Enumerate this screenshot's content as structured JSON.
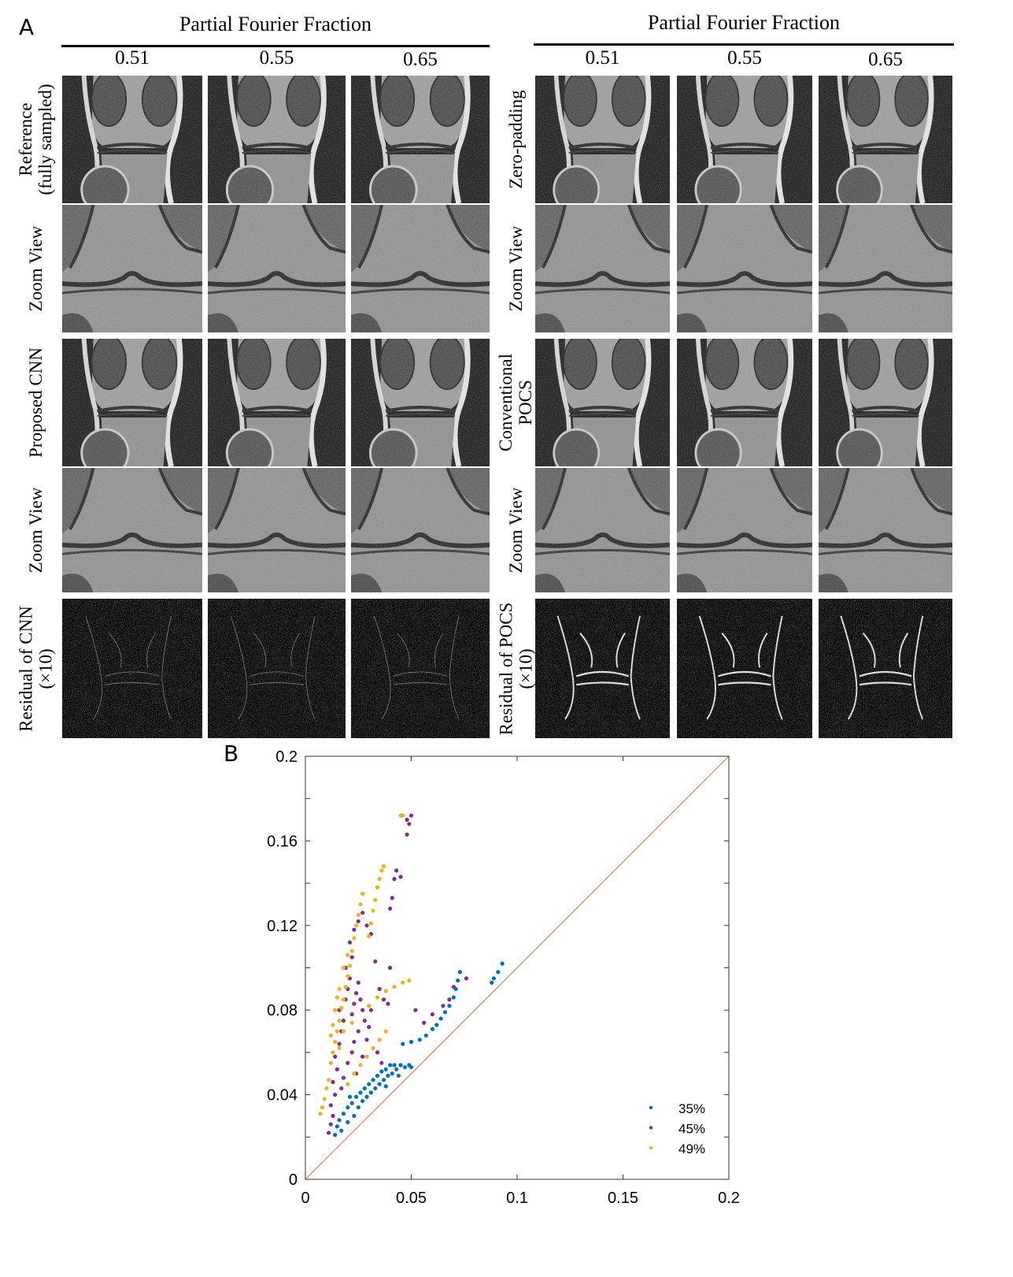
{
  "panel_a": {
    "letter": "A",
    "left": {
      "title": "Partial Fourier Fraction",
      "fractions": [
        "0.51",
        "0.55",
        "0.65"
      ],
      "rows": [
        {
          "lines": [
            "Reference",
            "(fully sampled)"
          ],
          "kind": "mri"
        },
        {
          "lines": [
            "Zoom View"
          ],
          "kind": "zoom"
        },
        {
          "lines": [
            "Proposed CNN"
          ],
          "kind": "mri"
        },
        {
          "lines": [
            "Zoom View"
          ],
          "kind": "zoom"
        },
        {
          "lines": [
            "Residual of CNN",
            "(×10)"
          ],
          "kind": "residual-cnn"
        }
      ]
    },
    "right": {
      "title": "Partial Fourier Fraction",
      "fractions": [
        "0.51",
        "0.55",
        "0.65"
      ],
      "rows": [
        {
          "lines": [
            "Zero-padding"
          ],
          "kind": "mri"
        },
        {
          "lines": [
            "Zoom View"
          ],
          "kind": "zoom"
        },
        {
          "lines": [
            "Conventional",
            "POCS"
          ],
          "kind": "mri"
        },
        {
          "lines": [
            "Zoom View"
          ],
          "kind": "zoom"
        },
        {
          "lines": [
            "Residual of POCS",
            "(×10)"
          ],
          "kind": "residual-pocs"
        }
      ]
    }
  },
  "panel_b": {
    "letter": "B"
  },
  "chart_data": {
    "type": "scatter",
    "title": "",
    "xlabel": "",
    "ylabel": "",
    "xlim": [
      0,
      0.2
    ],
    "ylim": [
      0,
      0.2
    ],
    "xticks": [
      "0",
      "0.05",
      "0.1",
      "0.15",
      "0.2"
    ],
    "xtick_values": [
      0,
      0.05,
      0.1,
      0.15,
      0.2
    ],
    "yticks": [
      "0",
      "0.04",
      "0.08",
      "0.12",
      "0.16",
      "0.2"
    ],
    "ytick_values": [
      0,
      0.04,
      0.08,
      0.12,
      0.16,
      0.2
    ],
    "grid": false,
    "legend_position": "bottom-right",
    "reference_line": {
      "from": [
        0,
        0
      ],
      "to": [
        0.2,
        0.2
      ],
      "color": "#d9825b"
    },
    "series": [
      {
        "name": "35%",
        "color": "#0072BD",
        "points": [
          [
            0.014,
            0.021
          ],
          [
            0.015,
            0.025
          ],
          [
            0.016,
            0.028
          ],
          [
            0.017,
            0.023
          ],
          [
            0.018,
            0.031
          ],
          [
            0.02,
            0.027
          ],
          [
            0.02,
            0.034
          ],
          [
            0.022,
            0.036
          ],
          [
            0.023,
            0.03
          ],
          [
            0.024,
            0.039
          ],
          [
            0.025,
            0.034
          ],
          [
            0.026,
            0.041
          ],
          [
            0.027,
            0.037
          ],
          [
            0.028,
            0.043
          ],
          [
            0.029,
            0.039
          ],
          [
            0.03,
            0.045
          ],
          [
            0.031,
            0.041
          ],
          [
            0.032,
            0.047
          ],
          [
            0.033,
            0.043
          ],
          [
            0.034,
            0.049
          ],
          [
            0.035,
            0.045
          ],
          [
            0.036,
            0.051
          ],
          [
            0.037,
            0.047
          ],
          [
            0.038,
            0.052
          ],
          [
            0.039,
            0.049
          ],
          [
            0.04,
            0.054
          ],
          [
            0.041,
            0.05
          ],
          [
            0.042,
            0.054
          ],
          [
            0.043,
            0.052
          ],
          [
            0.045,
            0.054
          ],
          [
            0.047,
            0.053
          ],
          [
            0.049,
            0.054
          ],
          [
            0.05,
            0.053
          ],
          [
            0.046,
            0.064
          ],
          [
            0.05,
            0.065
          ],
          [
            0.054,
            0.066
          ],
          [
            0.057,
            0.068
          ],
          [
            0.06,
            0.071
          ],
          [
            0.062,
            0.073
          ],
          [
            0.064,
            0.076
          ],
          [
            0.066,
            0.079
          ],
          [
            0.068,
            0.082
          ],
          [
            0.07,
            0.086
          ],
          [
            0.071,
            0.09
          ],
          [
            0.072,
            0.094
          ],
          [
            0.073,
            0.098
          ],
          [
            0.088,
            0.093
          ],
          [
            0.089,
            0.095
          ],
          [
            0.091,
            0.098
          ],
          [
            0.093,
            0.102
          ],
          [
            0.038,
            0.044
          ],
          [
            0.044,
            0.049
          ],
          [
            0.021,
            0.039
          ]
        ]
      },
      {
        "name": "45%",
        "color": "#7E2F8E",
        "points": [
          [
            0.011,
            0.022
          ],
          [
            0.012,
            0.026
          ],
          [
            0.013,
            0.03
          ],
          [
            0.012,
            0.035
          ],
          [
            0.014,
            0.04
          ],
          [
            0.013,
            0.046
          ],
          [
            0.015,
            0.052
          ],
          [
            0.014,
            0.058
          ],
          [
            0.016,
            0.064
          ],
          [
            0.017,
            0.07
          ],
          [
            0.018,
            0.075
          ],
          [
            0.016,
            0.08
          ],
          [
            0.019,
            0.085
          ],
          [
            0.02,
            0.09
          ],
          [
            0.021,
            0.095
          ],
          [
            0.019,
            0.1
          ],
          [
            0.022,
            0.078
          ],
          [
            0.023,
            0.083
          ],
          [
            0.024,
            0.088
          ],
          [
            0.025,
            0.093
          ],
          [
            0.026,
            0.085
          ],
          [
            0.027,
            0.08
          ],
          [
            0.028,
            0.075
          ],
          [
            0.025,
            0.07
          ],
          [
            0.023,
            0.065
          ],
          [
            0.022,
            0.06
          ],
          [
            0.02,
            0.055
          ],
          [
            0.018,
            0.048
          ],
          [
            0.017,
            0.043
          ],
          [
            0.024,
            0.05
          ],
          [
            0.027,
            0.058
          ],
          [
            0.029,
            0.066
          ],
          [
            0.03,
            0.072
          ],
          [
            0.031,
            0.08
          ],
          [
            0.022,
            0.105
          ],
          [
            0.021,
            0.112
          ],
          [
            0.023,
            0.118
          ],
          [
            0.025,
            0.122
          ],
          [
            0.027,
            0.126
          ],
          [
            0.029,
            0.12
          ],
          [
            0.031,
            0.116
          ],
          [
            0.033,
            0.103
          ],
          [
            0.035,
            0.09
          ],
          [
            0.037,
            0.085
          ],
          [
            0.039,
            0.083
          ],
          [
            0.04,
            0.1
          ],
          [
            0.04,
            0.128
          ],
          [
            0.041,
            0.133
          ],
          [
            0.042,
            0.142
          ],
          [
            0.043,
            0.146
          ],
          [
            0.045,
            0.143
          ],
          [
            0.048,
            0.163
          ],
          [
            0.049,
            0.168
          ],
          [
            0.05,
            0.172
          ],
          [
            0.048,
            0.17
          ],
          [
            0.056,
            0.074
          ],
          [
            0.06,
            0.078
          ],
          [
            0.065,
            0.082
          ],
          [
            0.068,
            0.085
          ],
          [
            0.07,
            0.091
          ],
          [
            0.076,
            0.095
          ],
          [
            0.052,
            0.08
          ],
          [
            0.034,
            0.06
          ],
          [
            0.036,
            0.055
          ]
        ]
      },
      {
        "name": "49%",
        "color": "#EDB120",
        "points": [
          [
            0.007,
            0.031
          ],
          [
            0.008,
            0.034
          ],
          [
            0.009,
            0.038
          ],
          [
            0.01,
            0.043
          ],
          [
            0.011,
            0.047
          ],
          [
            0.012,
            0.055
          ],
          [
            0.013,
            0.06
          ],
          [
            0.014,
            0.065
          ],
          [
            0.015,
            0.07
          ],
          [
            0.016,
            0.075
          ],
          [
            0.017,
            0.081
          ],
          [
            0.018,
            0.085
          ],
          [
            0.019,
            0.091
          ],
          [
            0.02,
            0.096
          ],
          [
            0.021,
            0.101
          ],
          [
            0.022,
            0.108
          ],
          [
            0.023,
            0.114
          ],
          [
            0.024,
            0.12
          ],
          [
            0.025,
            0.125
          ],
          [
            0.026,
            0.13
          ],
          [
            0.027,
            0.135
          ],
          [
            0.012,
            0.068
          ],
          [
            0.013,
            0.073
          ],
          [
            0.014,
            0.08
          ],
          [
            0.015,
            0.086
          ],
          [
            0.016,
            0.09
          ],
          [
            0.018,
            0.1
          ],
          [
            0.02,
            0.106
          ],
          [
            0.03,
            0.115
          ],
          [
            0.031,
            0.121
          ],
          [
            0.032,
            0.127
          ],
          [
            0.033,
            0.132
          ],
          [
            0.034,
            0.138
          ],
          [
            0.035,
            0.142
          ],
          [
            0.036,
            0.146
          ],
          [
            0.037,
            0.148
          ],
          [
            0.02,
            0.045
          ],
          [
            0.023,
            0.05
          ],
          [
            0.026,
            0.054
          ],
          [
            0.029,
            0.058
          ],
          [
            0.032,
            0.062
          ],
          [
            0.035,
            0.066
          ],
          [
            0.038,
            0.07
          ],
          [
            0.03,
            0.082
          ],
          [
            0.034,
            0.086
          ],
          [
            0.038,
            0.089
          ],
          [
            0.042,
            0.091
          ],
          [
            0.046,
            0.093
          ],
          [
            0.049,
            0.094
          ],
          [
            0.045,
            0.172
          ],
          [
            0.046,
            0.172
          ],
          [
            0.016,
            0.062
          ],
          [
            0.018,
            0.07
          ],
          [
            0.022,
            0.074
          ]
        ]
      }
    ]
  }
}
